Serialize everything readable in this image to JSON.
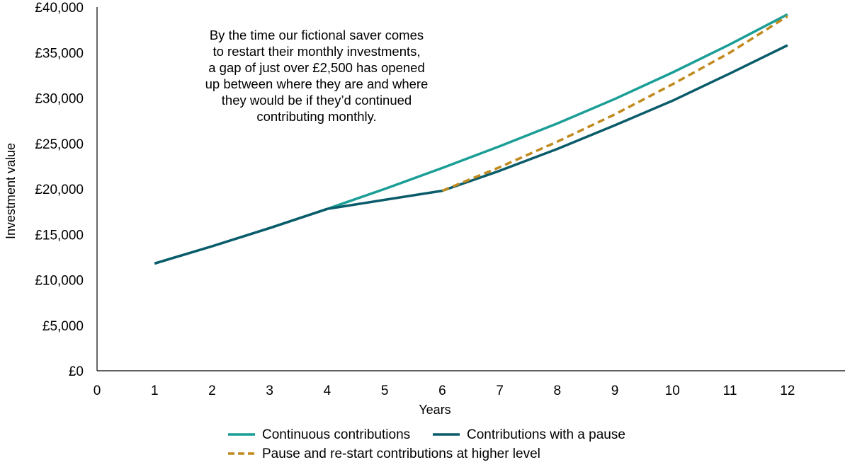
{
  "chart_data": {
    "type": "line",
    "xlabel": "Years",
    "ylabel": "Investment value",
    "xlim": [
      0,
      13
    ],
    "ylim": [
      0,
      40000
    ],
    "x_ticks": [
      "0",
      "1",
      "2",
      "3",
      "4",
      "5",
      "6",
      "7",
      "8",
      "9",
      "10",
      "11",
      "12"
    ],
    "y_ticks": [
      "£0",
      "£5,000",
      "£10,000",
      "£15,000",
      "£20,000",
      "£25,000",
      "£30,000",
      "£35,000",
      "£40,000"
    ],
    "grid": false,
    "legend_position": "bottom",
    "annotation": [
      "By the time our fictional saver comes",
      "to restart their monthly investments,",
      "a gap of just over £2,500 has opened",
      "up between where they are and where",
      "they would be if they’d continued",
      "contributing monthly."
    ],
    "series": [
      {
        "name": "Continuous contributions",
        "color": "#1a9e96",
        "dash": "solid",
        "points": [
          [
            1,
            11800
          ],
          [
            2,
            13700
          ],
          [
            3,
            15700
          ],
          [
            4,
            17800
          ],
          [
            5,
            20000
          ],
          [
            6,
            22300
          ],
          [
            7,
            24700
          ],
          [
            8,
            27200
          ],
          [
            9,
            29900
          ],
          [
            10,
            32800
          ],
          [
            11,
            35900
          ],
          [
            12,
            39200
          ]
        ]
      },
      {
        "name": "Contributions with a pause",
        "color": "#0a5c6b",
        "dash": "solid",
        "points": [
          [
            1,
            11800
          ],
          [
            2,
            13700
          ],
          [
            3,
            15700
          ],
          [
            4,
            17800
          ],
          [
            5,
            18800
          ],
          [
            6,
            19800
          ],
          [
            7,
            22000
          ],
          [
            8,
            24400
          ],
          [
            9,
            27000
          ],
          [
            10,
            29700
          ],
          [
            11,
            32700
          ],
          [
            12,
            35800
          ]
        ]
      },
      {
        "name": "Pause and re-start contributions at higher level",
        "color": "#c08a1e",
        "dash": "dashed",
        "points": [
          [
            6,
            19800
          ],
          [
            7,
            22400
          ],
          [
            8,
            25200
          ],
          [
            9,
            28200
          ],
          [
            10,
            31500
          ],
          [
            11,
            35000
          ],
          [
            12,
            39000
          ]
        ]
      }
    ]
  }
}
